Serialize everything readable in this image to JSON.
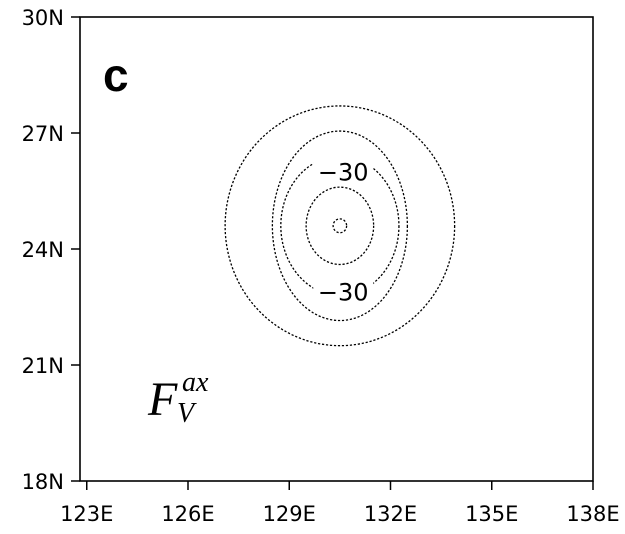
{
  "chart_data": {
    "type": "contour",
    "panel_label": "c",
    "variable_label": {
      "main": "F",
      "superscript": "ax",
      "subscript": "V"
    },
    "x_axis": {
      "ticks": [
        123,
        126,
        129,
        132,
        135,
        138
      ],
      "tick_labels": [
        "123E",
        "126E",
        "129E",
        "132E",
        "135E",
        "138E"
      ],
      "range": [
        122.8,
        138
      ]
    },
    "y_axis": {
      "ticks": [
        18,
        21,
        24,
        27,
        30
      ],
      "tick_labels": [
        "18N",
        "21N",
        "24N",
        "27N",
        "30N"
      ],
      "range": [
        18,
        30
      ]
    },
    "grid": false,
    "line_style": "dashed (negative values)",
    "center": {
      "lon": 130.5,
      "lat": 24.6
    },
    "contours": [
      {
        "radius_lon": 3.4,
        "radius_lat": 3.1
      },
      {
        "radius_lon": 2.0,
        "radius_lat": 2.45
      },
      {
        "radius_lon": 1.75,
        "radius_lat": 1.8
      },
      {
        "radius_lon": 1.0,
        "radius_lat": 1.0
      },
      {
        "radius_lon": 0.2,
        "radius_lat": 0.18
      }
    ],
    "contour_labels": [
      {
        "text": "−30",
        "lon": 130.6,
        "lat": 26.0
      },
      {
        "text": "−30",
        "lon": 130.6,
        "lat": 22.9
      }
    ]
  }
}
